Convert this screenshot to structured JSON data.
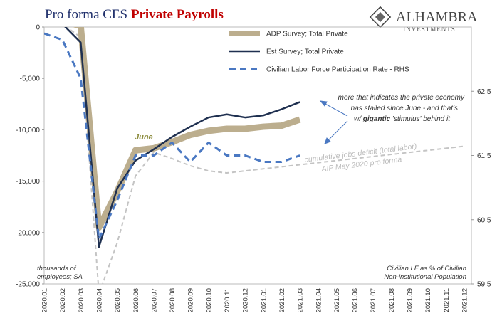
{
  "chart_data": {
    "type": "line",
    "title": [
      "Pro forma CES",
      "Private Payrolls"
    ],
    "logo": [
      "ALHAMBRA",
      "INVESTMENTS"
    ],
    "categories": [
      "2020.01",
      "2020.02",
      "2020.03",
      "2020.04",
      "2020.05",
      "2020.06",
      "2020.07",
      "2020.08",
      "2020.09",
      "2020.10",
      "2020.11",
      "2020.12",
      "2021.01",
      "2021.02",
      "2021.03",
      "2021.04",
      "2021.05",
      "2021.06",
      "2021.07",
      "2021.08",
      "2021.09",
      "2021.10",
      "2021.11",
      "2021.12"
    ],
    "series": [
      {
        "name": "ADP Survey; Total Private",
        "color": "#bcae8e",
        "style": "solid",
        "width": 9,
        "values": [
          400,
          600,
          100,
          -19500,
          -16000,
          -12000,
          -11800,
          -11200,
          -10500,
          -10100,
          -9900,
          -9900,
          -9700,
          -9600,
          -9000,
          null,
          null,
          null,
          null,
          null,
          null,
          null,
          null,
          null
        ]
      },
      {
        "name": "Est Survey; Total Private",
        "color": "#1f3050",
        "style": "solid",
        "width": 2.5,
        "values": [
          200,
          300,
          -1500,
          -21400,
          -15700,
          -13000,
          -11900,
          -10700,
          -9700,
          -8800,
          -8500,
          -8800,
          -8600,
          -8000,
          -7300,
          null,
          null,
          null,
          null,
          null,
          null,
          null,
          null,
          null
        ]
      },
      {
        "name": "Civilian Labor Force Participation Rate - RHS",
        "color": "#4a78c2",
        "style": "dashed",
        "width": 3,
        "axis": "y2",
        "values": [
          63.4,
          63.3,
          62.7,
          60.2,
          60.8,
          61.5,
          61.5,
          61.7,
          61.4,
          61.7,
          61.5,
          61.5,
          61.4,
          61.4,
          61.5,
          null,
          null,
          null,
          null,
          null,
          null,
          null,
          null,
          null
        ]
      },
      {
        "name": "cumulative jobs deficit (total labor)",
        "color": "#c4c4c4",
        "style": "dashed",
        "width": 2,
        "values": [
          500,
          300,
          -1000,
          -26000,
          -21000,
          -14500,
          -12200,
          -12800,
          -13500,
          -14000,
          -14200,
          -14000,
          -13800,
          -13600,
          -13400,
          -13200,
          -13000,
          -12800,
          -12600,
          -12400,
          -12200,
          -12000,
          -11800,
          -11600
        ]
      }
    ],
    "ylim": [
      -25000,
      0
    ],
    "yticks": [
      {
        "value": -25000,
        "label": "-25,000"
      },
      {
        "value": -20000,
        "label": "-20,000"
      },
      {
        "value": -15000,
        "label": "-15,000"
      },
      {
        "value": -10000,
        "label": "-10,000"
      },
      {
        "value": -5000,
        "label": "-5,000"
      },
      0
    ],
    "y2lim": [
      59.5,
      63.5
    ],
    "y2ticks": [
      59.5,
      60.5,
      61.5,
      62.5
    ],
    "annotations": {
      "june": "June",
      "pro_forma": "AIP May 2020 pro forma",
      "comment": [
        "more that indicates the private economy",
        "has stalled since June - and that's",
        "w/ ",
        "gigantic",
        " 'stimulus' behind it"
      ],
      "left_unit": [
        "thousands of",
        "employees; SA"
      ],
      "right_unit": [
        "Civilian LF as % of Civilian",
        "Non-institutional Population"
      ]
    }
  }
}
